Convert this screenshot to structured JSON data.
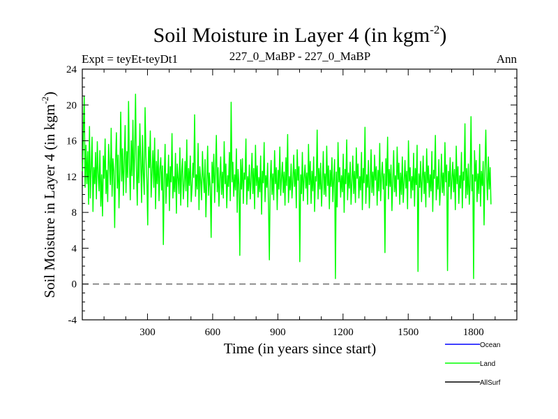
{
  "chart_data": {
    "type": "line",
    "title_main": "Soil Moisture in Layer 4 (in kgm",
    "title_sup": "-2",
    "title_close": ")",
    "subtitle_left": "Expt = teyEt-teyDt1",
    "subtitle_center": "227_0_MaBP - 227_0_MaBP",
    "subtitle_right": "Ann",
    "xlabel": "Time (in years since start)",
    "ylabel_main": "Soil Moisture in Layer 4 (in kgm",
    "ylabel_sup": "-2",
    "ylabel_close": ")",
    "xlim": [
      0,
      2000
    ],
    "ylim": [
      -4,
      24
    ],
    "x_ticks": [
      300,
      600,
      900,
      1200,
      1500,
      1800
    ],
    "y_ticks": [
      -4,
      0,
      4,
      8,
      12,
      16,
      20,
      24
    ],
    "zero_line": 0,
    "legend": [
      {
        "name": "Ocean",
        "color": "#0000ff"
      },
      {
        "name": "Land",
        "color": "#00ff00"
      },
      {
        "name": "AllSurf",
        "color": "#000000"
      }
    ],
    "series": [
      {
        "name": "Land",
        "color": "#00ff00",
        "x_start": 1,
        "x_step": 4,
        "values": [
          12.6,
          17.3,
          20.9,
          10.8,
          15.5,
          11.2,
          14.8,
          8.9,
          17.6,
          9.6,
          13.1,
          16.4,
          8.1,
          13.0,
          11.2,
          14.7,
          9.5,
          15.9,
          12.3,
          10.4,
          14.9,
          8.7,
          12.2,
          7.6,
          14.3,
          11.8,
          16.2,
          10.1,
          12.7,
          9.2,
          15.6,
          13.4,
          11.1,
          17.4,
          9.8,
          14.0,
          12.6,
          6.3,
          13.8,
          16.9,
          10.7,
          14.4,
          8.5,
          12.8,
          19.2,
          11.5,
          15.1,
          9.9,
          13.6,
          17.7,
          10.2,
          14.8,
          11.9,
          20.4,
          13.3,
          9.4,
          16.0,
          12.1,
          18.3,
          10.6,
          14.7,
          21.2,
          12.9,
          8.8,
          15.4,
          11.3,
          17.9,
          13.5,
          9.1,
          16.6,
          12.4,
          10.0,
          19.7,
          14.2,
          11.6,
          6.6,
          15.3,
          13.0,
          17.1,
          9.7,
          12.5,
          14.9,
          10.8,
          16.3,
          8.4,
          13.7,
          11.2,
          15.0,
          9.3,
          12.8,
          14.1,
          10.5,
          13.2,
          4.4,
          11.7,
          15.6,
          9.0,
          12.3,
          10.9,
          14.4,
          8.2,
          13.1,
          11.4,
          16.8,
          9.6,
          12.0,
          10.3,
          14.6,
          7.9,
          13.4,
          11.8,
          10.1,
          15.2,
          8.8,
          12.6,
          14.0,
          9.5,
          11.1,
          13.7,
          10.4,
          16.1,
          8.6,
          12.9,
          11.0,
          14.3,
          9.2,
          10.7,
          13.5,
          11.9,
          18.9,
          9.8,
          12.2,
          10.6,
          15.7,
          8.3,
          13.1,
          11.5,
          9.4,
          14.8,
          12.0,
          10.2,
          13.9,
          7.5,
          11.6,
          15.4,
          9.9,
          12.4,
          10.8,
          5.2,
          13.6,
          11.3,
          14.5,
          9.1,
          12.7,
          16.6,
          10.3,
          13.0,
          8.7,
          11.8,
          14.2,
          10.0,
          12.5,
          9.6,
          15.9,
          11.2,
          13.4,
          8.5,
          12.1,
          10.9,
          14.7,
          9.3,
          20.3,
          11.4,
          13.6,
          9.8,
          12.2,
          10.5,
          15.1,
          8.0,
          12.8,
          11.1,
          3.2,
          13.9,
          10.6,
          14.0,
          9.0,
          12.4,
          11.7,
          16.2,
          8.9,
          12.0,
          10.4,
          13.3,
          9.5,
          11.6,
          14.6,
          10.1,
          12.9,
          8.4,
          15.5,
          11.0,
          13.2,
          9.7,
          11.9,
          10.3,
          14.3,
          7.8,
          12.6,
          11.3,
          15.8,
          9.2,
          12.1,
          10.8,
          13.5,
          8.6,
          2.7,
          11.5,
          13.8,
          10.0,
          12.3,
          9.4,
          14.9,
          11.2,
          13.0,
          8.3,
          12.7,
          10.6,
          15.3,
          9.9,
          11.7,
          13.6,
          10.2,
          12.5,
          8.8,
          14.1,
          11.0,
          16.7,
          9.1,
          12.0,
          10.5,
          13.4,
          9.6,
          11.4,
          14.4,
          10.9,
          12.8,
          8.5,
          15.0,
          11.6,
          13.1,
          2.5,
          12.2,
          10.1,
          14.7,
          9.3,
          11.8,
          13.3,
          10.7,
          12.4,
          8.9,
          15.6,
          11.1,
          13.7,
          9.0,
          12.6,
          10.4,
          14.2,
          8.1,
          12.0,
          11.5,
          17.2,
          9.5,
          12.9,
          10.6,
          13.5,
          8.7,
          11.3,
          14.8,
          10.0,
          12.3,
          9.8,
          15.4,
          11.0,
          13.2,
          8.4,
          12.7,
          10.9,
          14.1,
          9.2,
          11.7,
          13.9,
          0.6,
          12.5,
          8.6,
          15.8,
          11.4,
          13.0,
          9.7,
          12.1,
          10.3,
          14.5,
          8.0,
          12.8,
          11.2,
          16.1,
          9.4,
          12.4,
          10.7,
          13.6,
          8.9,
          11.5,
          14.3,
          10.1,
          12.6,
          9.1,
          15.2,
          11.8,
          13.4,
          9.6,
          12.0,
          10.5,
          14.7,
          8.3,
          12.9,
          11.3,
          17.5,
          9.0,
          12.2,
          10.8,
          13.8,
          8.5,
          11.1,
          15.0,
          10.2,
          12.5,
          9.9,
          14.4,
          11.6,
          13.1,
          8.8,
          12.7,
          10.4,
          15.7,
          9.3,
          11.9,
          13.6,
          10.6,
          12.3,
          3.5,
          14.0,
          11.0,
          16.4,
          9.5,
          12.8,
          10.9,
          13.3,
          8.2,
          11.4,
          14.9,
          10.3,
          12.1,
          9.8,
          15.3,
          11.7,
          13.5,
          8.9,
          12.4,
          10.0,
          14.2,
          9.1,
          11.2,
          13.8,
          10.7,
          12.6,
          8.4,
          16.0,
          11.5,
          13.0,
          9.6,
          12.0,
          10.5,
          14.6,
          8.7,
          12.9,
          11.1,
          15.5,
          1.4,
          12.3,
          10.8,
          13.7,
          9.2,
          11.6,
          14.3,
          10.1,
          12.5,
          8.6,
          15.1,
          11.3,
          13.2,
          9.7,
          12.2,
          10.4,
          14.8,
          8.1,
          12.7,
          11.8,
          16.6,
          9.4,
          12.0,
          10.6,
          13.9,
          8.8,
          11.0,
          14.5,
          10.2,
          12.4,
          9.9,
          15.8,
          11.4,
          13.3,
          1.5,
          12.6,
          10.9,
          14.1,
          9.5,
          11.7,
          13.6,
          10.3,
          12.8,
          8.3,
          15.4,
          11.2,
          13.1,
          9.0,
          12.1,
          10.7,
          14.7,
          8.5,
          12.5,
          11.6,
          17.9,
          9.6,
          12.9,
          10.0,
          13.4,
          8.9,
          11.3,
          18.7,
          10.4,
          12.2,
          0.6,
          14.9,
          11.5,
          13.8,
          9.2,
          12.3,
          10.1,
          15.6,
          8.7,
          12.6,
          11.0,
          13.7,
          6.6,
          12.4,
          17.2,
          11.9,
          9.4,
          14.2,
          10.6,
          13.0,
          8.9
        ]
      }
    ]
  }
}
